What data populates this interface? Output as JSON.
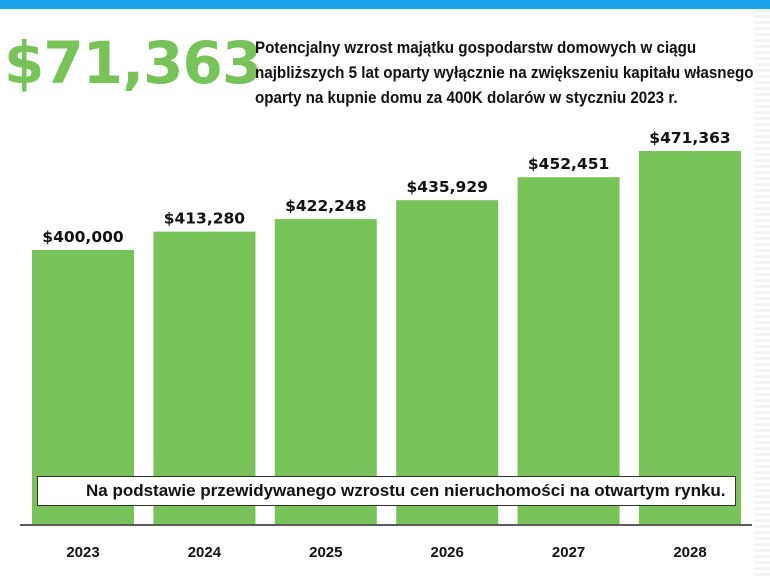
{
  "colors": {
    "accent_bar": "#1aa3e8",
    "bar_fill": "#77c35a",
    "big_number": "#77c35a",
    "text": "#111111"
  },
  "headline": {
    "value": "$71,363",
    "lines": [
      "Potencjalny wzrost majątku gospodarstw domowych w ciągu",
      "najbliższych 5 lat oparty wyłącznie na zwiększeniu kapitału własnego",
      "oparty na kupnie domu za 400K dolarów w styczniu 2023 r."
    ]
  },
  "note": "Na podstawie przewidywanego wzrostu cen nieruchomości na otwartym rynku.",
  "chart_data": {
    "type": "bar",
    "categories": [
      "2023",
      "2024",
      "2025",
      "2026",
      "2027",
      "2028"
    ],
    "values": [
      400000,
      413280,
      422248,
      435929,
      452451,
      471363
    ],
    "value_labels": [
      "$400,000",
      "$413,280",
      "$422,248",
      "$435,929",
      "$452,451",
      "$471,363"
    ],
    "title": "",
    "xlabel": "",
    "ylabel": "",
    "grid": false,
    "legend": "none"
  }
}
